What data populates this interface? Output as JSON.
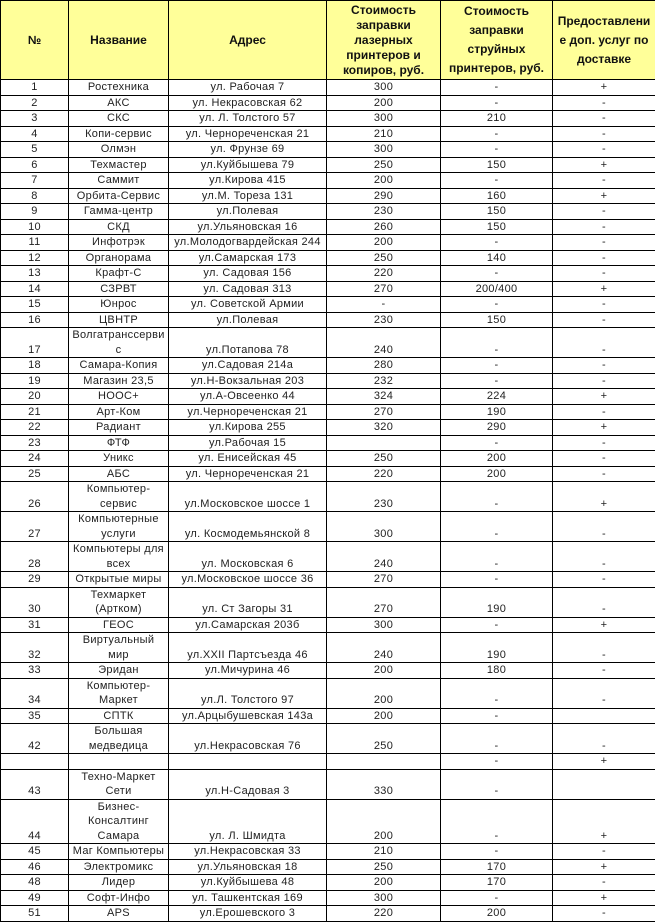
{
  "header": {
    "num": "№",
    "name": "Название",
    "address": "Адрес",
    "laser": "Стоимость\nзаправки\nлазерных\nпринтеров и\nкопиров, руб.",
    "inkjet": "Стоимость\nзаправки\nструйных\nпринтеров, руб.",
    "delivery": "Предоставлени\nе доп. услуг по\nдоставке"
  },
  "colors": {
    "header_bg": "#FFFF99",
    "border": "#000000"
  },
  "rows": [
    [
      "1",
      "Ростехника",
      "ул. Рабочая 7",
      "300",
      "-",
      "+"
    ],
    [
      "2",
      "АКС",
      "ул. Некрасовская 62",
      "200",
      "-",
      "-"
    ],
    [
      "3",
      "СКС",
      "ул. Л. Толстого 57",
      "300",
      "210",
      "-"
    ],
    [
      "4",
      "Копи-сервис",
      "ул. Чернореченская 21",
      "210",
      "-",
      "-"
    ],
    [
      "5",
      "Олмэн",
      "ул. Фрунзе 69",
      "300",
      "-",
      "-"
    ],
    [
      "6",
      "Техмастер",
      "ул.Куйбышева 79",
      "250",
      "150",
      "+"
    ],
    [
      "7",
      "Саммит",
      "ул.Кирова 415",
      "200",
      "-",
      "-"
    ],
    [
      "8",
      "Орбита-Сервис",
      "ул.М. Тореза 131",
      "290",
      "160",
      "+"
    ],
    [
      "9",
      "Гамма-центр",
      "ул.Полевая",
      "230",
      "150",
      "-"
    ],
    [
      "10",
      "СКД",
      "ул.Ульяновская 16",
      "260",
      "150",
      "-"
    ],
    [
      "11",
      "Инфотрэк",
      "ул.Молодогвардейская 244",
      "200",
      "-",
      "-"
    ],
    [
      "12",
      "Органорама",
      "ул.Самарская 173",
      "250",
      "140",
      "-"
    ],
    [
      "13",
      "Крафт-С",
      "ул. Садовая 156",
      "220",
      "-",
      "-"
    ],
    [
      "14",
      "СЗРВТ",
      "ул. Садовая 313",
      "270",
      "200/400",
      "+"
    ],
    [
      "15",
      "Юнрос",
      "ул. Советской Армии",
      "-",
      "-",
      "-"
    ],
    [
      "16",
      "ЦВНТР",
      "ул.Полевая",
      "230",
      "150",
      "-"
    ],
    [
      "17",
      "Волгатранссерви\nс",
      "ул.Потапова 78",
      "240",
      "-",
      "-"
    ],
    [
      "18",
      "Самара-Копия",
      "ул.Садовая 214а",
      "280",
      "-",
      "-"
    ],
    [
      "19",
      "Магазин 23,5",
      "ул.Н-Вокзальная 203",
      "232",
      "-",
      "-"
    ],
    [
      "20",
      "НООС+",
      "ул.А-Овсеенко 44",
      "324",
      "224",
      "+"
    ],
    [
      "21",
      "Арт-Ком",
      "ул.Чернореченская 21",
      "270",
      "190",
      "-"
    ],
    [
      "22",
      "Радиант",
      "ул.Кирова 255",
      "320",
      "290",
      "+"
    ],
    [
      "23",
      "ФТФ",
      "ул.Рабочая 15",
      "",
      "-",
      "-"
    ],
    [
      "24",
      "Уникс",
      "ул. Енисейская 45",
      "250",
      "200",
      "-"
    ],
    [
      "25",
      "АБС",
      "ул. Чернореченская 21",
      "220",
      "200",
      "-"
    ],
    [
      "26",
      "Компьютер-\nсервис",
      "ул.Московское шоссе 1",
      "230",
      "-",
      "+"
    ],
    [
      "27",
      "Компьютерные\nуслуги",
      "ул. Космодемьянской 8",
      "300",
      "-",
      "-"
    ],
    [
      "28",
      "Компьютеры для\nвсех",
      "ул. Московская 6",
      "240",
      "-",
      "-"
    ],
    [
      "29",
      "Открытые миры",
      "ул.Московское шоссе 36",
      "270",
      "-",
      "-"
    ],
    [
      "30",
      "Техмаркет\n(Артком)",
      "ул. Ст Загоры 31",
      "270",
      "190",
      "-"
    ],
    [
      "31",
      "ГЕОС",
      "ул.Самарская 203б",
      "300",
      "-",
      "+"
    ],
    [
      "32",
      "Виртуальный\nмир",
      "ул.XXII Партсъезда 46",
      "240",
      "190",
      "-"
    ],
    [
      "33",
      "Эридан",
      "ул.Мичурина 46",
      "200",
      "180",
      "-"
    ],
    [
      "34",
      "Компьютер-\nМаркет",
      "ул.Л. Толстого 97",
      "200",
      "-",
      "-"
    ],
    [
      "35",
      "СПТК",
      "ул.Арцыбушевская 143а",
      "200",
      "-",
      ""
    ],
    [
      "42",
      "Большая\nмедведица",
      "ул.Некрасовская 76",
      "250",
      "-",
      "-"
    ],
    [
      "",
      "",
      "",
      "",
      "-",
      "+"
    ],
    [
      "43",
      "Техно-Маркет\nСети",
      "ул.Н-Садовая 3",
      "330",
      "-",
      ""
    ],
    [
      "44",
      "Бизнес-\nКонсалтинг\nСамара",
      "ул. Л. Шмидта",
      "200",
      "-",
      "+"
    ],
    [
      "45",
      "Маг Компьютеры",
      "ул.Некрасовская 33",
      "210",
      "-",
      "-"
    ],
    [
      "46",
      "Электромикс",
      "ул.Ульяновская 18",
      "250",
      "170",
      "+"
    ],
    [
      "48",
      "Лидер",
      "ул.Куйбышева 48",
      "200",
      "170",
      "-"
    ],
    [
      "49",
      "Софт-Инфо",
      "ул. Ташкентская 169",
      "300",
      "-",
      "+"
    ],
    [
      "51",
      "APS",
      "ул.Ерошевского 3",
      "220",
      "200",
      "-"
    ]
  ]
}
